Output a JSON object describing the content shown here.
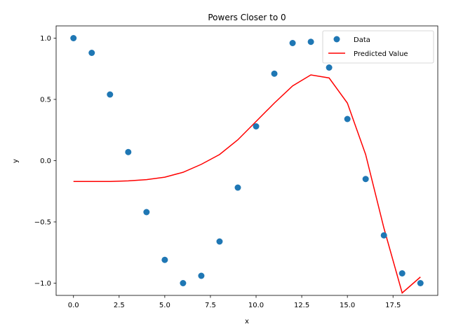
{
  "chart_data": {
    "type": "scatter",
    "title": "Powers Closer to 0",
    "xlabel": "x",
    "ylabel": "y",
    "xlim": [
      -0.95,
      19.95
    ],
    "ylim": [
      -1.1,
      1.1
    ],
    "xticks": [
      0,
      2.5,
      5,
      7.5,
      10,
      12.5,
      15,
      17.5
    ],
    "xtick_labels": [
      "0.0",
      "2.5",
      "5.0",
      "7.5",
      "10.0",
      "12.5",
      "15.0",
      "17.5"
    ],
    "yticks": [
      -1,
      -0.5,
      0,
      0.5,
      1
    ],
    "ytick_labels": [
      "−1.0",
      "−0.5",
      "0.0",
      "0.5",
      "1.0"
    ],
    "grid": false,
    "legend_position": "top-right",
    "series": [
      {
        "name": "Data",
        "kind": "scatter",
        "color": "#1f77b4",
        "x": [
          0,
          1,
          2,
          3,
          4,
          5,
          6,
          7,
          8,
          9,
          10,
          11,
          12,
          13,
          14,
          15,
          16,
          17,
          18,
          19
        ],
        "y": [
          1.0,
          0.88,
          0.54,
          0.07,
          -0.42,
          -0.81,
          -1.0,
          -0.94,
          -0.66,
          -0.22,
          0.28,
          0.71,
          0.96,
          0.97,
          0.76,
          0.34,
          -0.15,
          -0.61,
          -0.92,
          -1.0
        ]
      },
      {
        "name": "Predicted Value",
        "kind": "line",
        "color": "#ff0000",
        "x": [
          0,
          1,
          2,
          3,
          4,
          5,
          6,
          7,
          8,
          9,
          10,
          11,
          12,
          13,
          14,
          15,
          16,
          17,
          18,
          19
        ],
        "y": [
          -0.17,
          -0.17,
          -0.17,
          -0.165,
          -0.155,
          -0.135,
          -0.095,
          -0.03,
          0.05,
          0.17,
          0.32,
          0.47,
          0.61,
          0.7,
          0.675,
          0.47,
          0.05,
          -0.55,
          -1.08,
          -0.95
        ]
      }
    ]
  }
}
